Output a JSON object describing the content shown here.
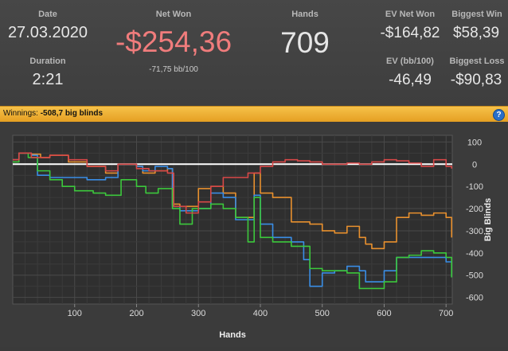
{
  "stats": {
    "date": {
      "label": "Date",
      "value": "27.03.2020"
    },
    "duration": {
      "label": "Duration",
      "value": "2:21"
    },
    "net_won": {
      "label": "Net Won",
      "value": "-$254,36",
      "sub": "-71,75 bb/100",
      "color": "#f07c7c"
    },
    "hands": {
      "label": "Hands",
      "value": "709"
    },
    "ev_net_won": {
      "label": "EV Net Won",
      "value": "-$164,82"
    },
    "ev_bb100": {
      "label": "EV (bb/100)",
      "value": "-46,49"
    },
    "biggest_win": {
      "label": "Biggest Win",
      "value": "$58,39"
    },
    "biggest_loss": {
      "label": "Biggest Loss",
      "value": "-$90,83"
    }
  },
  "banner": {
    "label": "Winnings:",
    "value": "-508,7 big blinds",
    "help_icon": "help-icon",
    "help_glyph": "?"
  },
  "chart_data": {
    "type": "line",
    "xlabel": "Hands",
    "ylabel": "Big Blinds",
    "xlim": [
      0,
      710
    ],
    "ylim": [
      -630,
      130
    ],
    "xticks": [
      100,
      200,
      300,
      400,
      500,
      600,
      700
    ],
    "yticks": [
      100,
      0,
      -100,
      -200,
      -300,
      -400,
      -500,
      -600
    ],
    "grid": true,
    "colors": {
      "green": "#3cc83c",
      "blue": "#3a8ee6",
      "orange": "#e8902e",
      "red": "#d84848",
      "zero": "#ffffff"
    },
    "series": [
      {
        "color_key": "orange",
        "x": [
          0,
          10,
          30,
          45,
          60,
          90,
          120,
          150,
          170,
          200,
          210,
          230,
          250,
          258,
          270,
          300,
          320,
          340,
          360,
          390,
          400,
          420,
          450,
          480,
          500,
          520,
          540,
          560,
          570,
          580,
          600,
          620,
          640,
          660,
          680,
          700,
          709
        ],
        "y": [
          20,
          50,
          45,
          30,
          40,
          10,
          -10,
          -40,
          0,
          -10,
          -40,
          -30,
          -20,
          -180,
          -190,
          -110,
          -100,
          -130,
          -240,
          -40,
          -130,
          -150,
          -260,
          -270,
          -300,
          -310,
          -280,
          -330,
          -360,
          -380,
          -350,
          -240,
          -220,
          -230,
          -220,
          -240,
          -330
        ]
      },
      {
        "color_key": "blue",
        "x": [
          0,
          10,
          30,
          40,
          60,
          90,
          120,
          150,
          170,
          200,
          210,
          230,
          250,
          258,
          270,
          300,
          320,
          340,
          360,
          390,
          400,
          420,
          450,
          470,
          480,
          500,
          520,
          540,
          560,
          570,
          600,
          620,
          640,
          660,
          680,
          700,
          709
        ],
        "y": [
          20,
          50,
          40,
          -50,
          -60,
          -60,
          -70,
          -60,
          0,
          -10,
          -30,
          -10,
          -20,
          -190,
          -210,
          -200,
          -130,
          -150,
          -250,
          -140,
          -270,
          -330,
          -350,
          -430,
          -550,
          -490,
          -480,
          -460,
          -480,
          -530,
          -480,
          -420,
          -420,
          -420,
          -420,
          -440,
          -510
        ]
      },
      {
        "color_key": "green",
        "x": [
          0,
          10,
          25,
          40,
          60,
          80,
          100,
          130,
          150,
          175,
          200,
          215,
          235,
          258,
          270,
          290,
          320,
          340,
          360,
          380,
          390,
          400,
          420,
          450,
          480,
          500,
          520,
          540,
          560,
          580,
          600,
          620,
          640,
          660,
          680,
          700,
          709
        ],
        "y": [
          10,
          50,
          30,
          -30,
          -70,
          -100,
          -120,
          -130,
          -140,
          -70,
          -100,
          -130,
          -110,
          -200,
          -270,
          -200,
          -180,
          -200,
          -240,
          -350,
          -150,
          -330,
          -350,
          -370,
          -470,
          -480,
          -480,
          -490,
          -560,
          -560,
          -530,
          -420,
          -410,
          -390,
          -400,
          -420,
          -510
        ]
      },
      {
        "color_key": "red",
        "x": [
          0,
          10,
          30,
          60,
          90,
          120,
          150,
          170,
          200,
          220,
          250,
          260,
          280,
          300,
          320,
          340,
          360,
          380,
          400,
          420,
          440,
          460,
          480,
          500,
          520,
          540,
          560,
          580,
          600,
          620,
          640,
          660,
          680,
          700,
          709
        ],
        "y": [
          20,
          50,
          30,
          40,
          20,
          -10,
          -30,
          0,
          -20,
          -30,
          -40,
          -190,
          -220,
          -170,
          -100,
          -60,
          -60,
          -40,
          -10,
          10,
          20,
          15,
          10,
          0,
          0,
          5,
          0,
          10,
          20,
          15,
          5,
          -10,
          20,
          -10,
          -20
        ]
      }
    ]
  }
}
